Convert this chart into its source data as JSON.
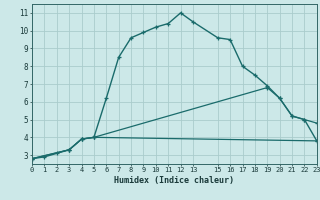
{
  "xlabel": "Humidex (Indice chaleur)",
  "bg_color": "#cce8e8",
  "grid_color": "#aacccc",
  "line_color": "#1a6b6b",
  "line1_x": [
    0,
    1,
    2,
    3,
    4,
    5,
    6,
    7,
    8,
    9,
    10,
    11,
    12,
    13,
    15,
    16,
    17,
    18,
    19,
    20,
    21,
    22,
    23
  ],
  "line1_y": [
    2.8,
    2.9,
    3.1,
    3.3,
    3.9,
    4.0,
    6.2,
    8.5,
    9.6,
    9.9,
    10.2,
    10.4,
    11.0,
    10.5,
    9.6,
    9.5,
    8.0,
    7.5,
    6.9,
    6.2,
    5.2,
    5.0,
    3.8
  ],
  "line2_x": [
    0,
    3,
    4,
    5,
    19,
    20,
    21,
    22,
    23
  ],
  "line2_y": [
    2.8,
    3.3,
    3.9,
    4.0,
    6.8,
    6.2,
    5.2,
    5.0,
    4.8
  ],
  "line3_x": [
    0,
    3,
    4,
    5,
    23
  ],
  "line3_y": [
    2.8,
    3.3,
    3.9,
    4.0,
    3.8
  ],
  "xlim": [
    0,
    23
  ],
  "ylim": [
    2.5,
    11.5
  ],
  "xticks": [
    0,
    1,
    2,
    3,
    4,
    5,
    6,
    7,
    8,
    9,
    10,
    11,
    12,
    13,
    15,
    16,
    17,
    18,
    19,
    20,
    21,
    22,
    23
  ],
  "yticks": [
    3,
    4,
    5,
    6,
    7,
    8,
    9,
    10,
    11
  ]
}
